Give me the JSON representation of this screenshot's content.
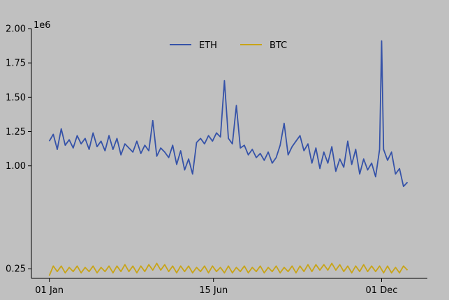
{
  "chart_data": {
    "type": "line",
    "y_scale_note": "1e6",
    "y_ticks": [
      {
        "value": 0.25,
        "label": "0.25"
      },
      {
        "value": 1.0,
        "label": "1.00"
      },
      {
        "value": 1.25,
        "label": "1.25"
      },
      {
        "value": 1.5,
        "label": "1.50"
      },
      {
        "value": 1.75,
        "label": "1.75"
      },
      {
        "value": 2.0,
        "label": "2.00"
      }
    ],
    "x_ticks": [
      {
        "value": 0,
        "label": "01 Jan"
      },
      {
        "value": 165,
        "label": "15 Jun"
      },
      {
        "value": 334,
        "label": "01 Dec"
      }
    ],
    "ylim": [
      0.18,
      2.0
    ],
    "xlim": [
      -18,
      380
    ],
    "grid": false,
    "legend_position": "top-center",
    "series": [
      {
        "name": "ETH",
        "color": "#3552a8",
        "x": [
          0,
          4,
          8,
          12,
          16,
          20,
          24,
          28,
          32,
          36,
          40,
          44,
          48,
          52,
          56,
          60,
          64,
          68,
          72,
          76,
          80,
          84,
          88,
          92,
          96,
          100,
          104,
          108,
          112,
          116,
          120,
          124,
          128,
          132,
          136,
          140,
          144,
          148,
          152,
          156,
          160,
          164,
          168,
          172,
          176,
          180,
          184,
          188,
          192,
          196,
          200,
          204,
          208,
          212,
          216,
          220,
          224,
          228,
          232,
          236,
          240,
          244,
          248,
          252,
          256,
          260,
          264,
          268,
          272,
          276,
          280,
          284,
          288,
          292,
          296,
          300,
          304,
          308,
          312,
          316,
          320,
          324,
          328,
          332,
          334,
          336,
          340,
          344,
          348,
          352,
          356,
          360
        ],
        "values": [
          1.18,
          1.23,
          1.12,
          1.27,
          1.15,
          1.19,
          1.13,
          1.22,
          1.16,
          1.2,
          1.12,
          1.24,
          1.14,
          1.18,
          1.11,
          1.22,
          1.12,
          1.2,
          1.08,
          1.16,
          1.13,
          1.1,
          1.18,
          1.09,
          1.15,
          1.11,
          1.33,
          1.07,
          1.13,
          1.1,
          1.06,
          1.15,
          1.01,
          1.11,
          0.97,
          1.05,
          0.94,
          1.17,
          1.2,
          1.16,
          1.22,
          1.18,
          1.24,
          1.21,
          1.62,
          1.2,
          1.16,
          1.44,
          1.13,
          1.15,
          1.08,
          1.12,
          1.06,
          1.09,
          1.04,
          1.1,
          1.02,
          1.06,
          1.15,
          1.31,
          1.08,
          1.14,
          1.18,
          1.22,
          1.11,
          1.16,
          1.02,
          1.13,
          0.98,
          1.1,
          1.02,
          1.14,
          0.96,
          1.05,
          0.99,
          1.18,
          1.01,
          1.12,
          0.94,
          1.05,
          0.97,
          1.02,
          0.92,
          1.12,
          1.91,
          1.12,
          1.04,
          1.1,
          0.94,
          0.98,
          0.85,
          0.88
        ]
      },
      {
        "name": "BTC",
        "color": "#c8a417",
        "x": [
          0,
          4,
          8,
          12,
          16,
          20,
          24,
          28,
          32,
          36,
          40,
          44,
          48,
          52,
          56,
          60,
          64,
          68,
          72,
          76,
          80,
          84,
          88,
          92,
          96,
          100,
          104,
          108,
          112,
          116,
          120,
          124,
          128,
          132,
          136,
          140,
          144,
          148,
          152,
          156,
          160,
          164,
          168,
          172,
          176,
          180,
          184,
          188,
          192,
          196,
          200,
          204,
          208,
          212,
          216,
          220,
          224,
          228,
          232,
          236,
          240,
          244,
          248,
          252,
          256,
          260,
          264,
          268,
          272,
          276,
          280,
          284,
          288,
          292,
          296,
          300,
          304,
          308,
          312,
          316,
          320,
          324,
          328,
          332,
          336,
          340,
          344,
          348,
          352,
          356,
          360
        ],
        "values": [
          0.2,
          0.27,
          0.23,
          0.27,
          0.22,
          0.26,
          0.23,
          0.27,
          0.22,
          0.26,
          0.23,
          0.27,
          0.22,
          0.26,
          0.23,
          0.27,
          0.22,
          0.27,
          0.23,
          0.28,
          0.23,
          0.27,
          0.22,
          0.27,
          0.23,
          0.28,
          0.24,
          0.29,
          0.24,
          0.28,
          0.23,
          0.27,
          0.22,
          0.27,
          0.23,
          0.27,
          0.22,
          0.26,
          0.23,
          0.27,
          0.22,
          0.27,
          0.23,
          0.26,
          0.22,
          0.27,
          0.22,
          0.26,
          0.23,
          0.27,
          0.22,
          0.26,
          0.23,
          0.27,
          0.22,
          0.26,
          0.23,
          0.27,
          0.22,
          0.26,
          0.23,
          0.27,
          0.22,
          0.27,
          0.23,
          0.28,
          0.23,
          0.28,
          0.24,
          0.28,
          0.24,
          0.29,
          0.24,
          0.28,
          0.23,
          0.27,
          0.22,
          0.27,
          0.23,
          0.28,
          0.23,
          0.27,
          0.23,
          0.27,
          0.22,
          0.27,
          0.22,
          0.26,
          0.22,
          0.27,
          0.24
        ]
      }
    ]
  }
}
